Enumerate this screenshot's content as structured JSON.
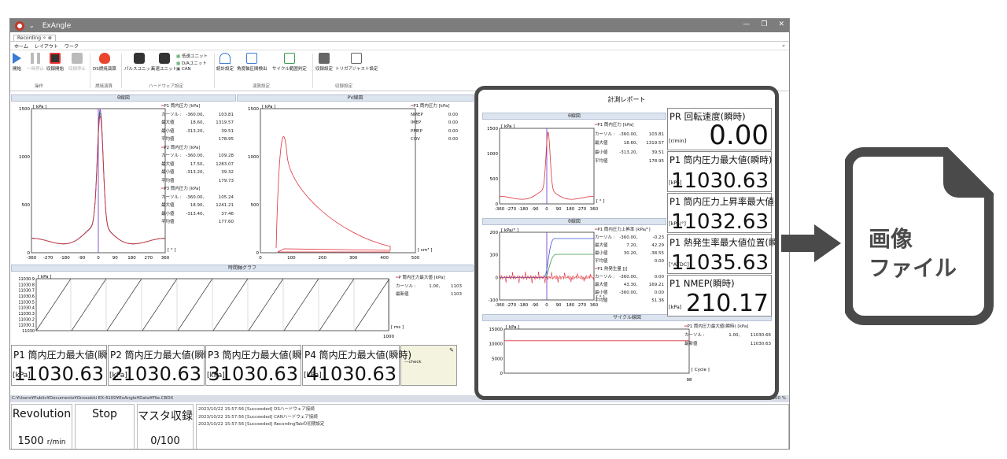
{
  "app": {
    "title": "ExAngle",
    "window_controls": [
      "—",
      "❐",
      "✕"
    ]
  },
  "tabs": [
    {
      "label": "Recording ✧ ⊗"
    }
  ],
  "menu": [
    "ホーム",
    "レイアウト",
    "ワーク"
  ],
  "ribbon": {
    "buttons": [
      {
        "label": "開始"
      },
      {
        "label": "一時停止"
      },
      {
        "label": "収録開始"
      },
      {
        "label": "収録停止"
      },
      {
        "label": "DS燃焼演算"
      },
      {
        "label": "パルスユニット"
      },
      {
        "label": "高速ユニット"
      },
      {
        "label": "低速ユニット"
      },
      {
        "label": "D/Aユニット"
      },
      {
        "label": "CAN"
      },
      {
        "label": "統計設定"
      },
      {
        "label": "角度軸区間検出"
      },
      {
        "label": "サイクル範囲判定"
      },
      {
        "label": "収録設定"
      },
      {
        "label": "トリガアジャスト設定"
      }
    ],
    "groups": [
      "操作",
      "燃焼演算",
      "ハードウェア設定",
      "演算設定",
      "収録設定"
    ]
  },
  "theta_panel": {
    "title": "θ線図",
    "y_unit": "[ kPa ]",
    "x_unit": "[ ° ]",
    "y_ticks": [
      "1500",
      "1000",
      "500",
      "0"
    ],
    "x_ticks": [
      "-360",
      "-270",
      "-180",
      "-90",
      "0",
      "90",
      "180",
      "270",
      "360"
    ],
    "legend": [
      {
        "name": "P1 筒内圧力 [kPa]",
        "rows": [
          [
            "カーソル :",
            "-360.00、",
            "103.81"
          ],
          [
            "最大値",
            "18.60、",
            "1319.57"
          ],
          [
            "最小値",
            "-313.20、",
            "39.51"
          ],
          [
            "平均値",
            "",
            "178.95"
          ]
        ]
      },
      {
        "name": "P2 筒内圧力 [kPa]",
        "rows": [
          [
            "カーソル :",
            "-360.00、",
            "109.28"
          ],
          [
            "最大値",
            "17.50、",
            "1283.07"
          ],
          [
            "最小値",
            "-313.20、",
            "39.32"
          ],
          [
            "平均値",
            "",
            "179.73"
          ]
        ]
      },
      {
        "name": "P3 筒内圧力 [kPa]",
        "rows": [
          [
            "カーソル :",
            "-360.00、",
            "105.24"
          ],
          [
            "最大値",
            "18.90、",
            "1241.21"
          ],
          [
            "最小値",
            "-313.40、",
            "37.46"
          ],
          [
            "平均値",
            "",
            "177.60"
          ]
        ]
      }
    ]
  },
  "pv_panel": {
    "title": "PV線図",
    "y_unit": "[ kPa ]",
    "x_unit": "[ cm³ ]",
    "y_ticks": [
      "1500",
      "1000",
      "500",
      "0"
    ],
    "x_ticks": [
      "0",
      "100",
      "200",
      "300",
      "400",
      "500"
    ],
    "legend": {
      "name": "P1 筒内圧力 [kPa]",
      "rows": [
        [
          "NMEP",
          "0.00"
        ],
        [
          "IMEP",
          "0.00"
        ],
        [
          "PMEP",
          "0.00"
        ],
        [
          "COV",
          "0.00"
        ]
      ]
    }
  },
  "time_panel": {
    "title": "時間軸グラフ",
    "y_unit": "[ kPa ]",
    "x_unit": "[ ms ]",
    "x_end": "1000",
    "y_ticks": [
      "11030.9",
      "11030.8",
      "11030.7",
      "11030.6",
      "11030.5",
      "11030.4",
      "11030.3",
      "11030.2",
      "11030.1",
      "11030"
    ],
    "legend": {
      "name": "P 筒内圧力最大値 [kPa]",
      "rows": [
        [
          "カーソル :",
          "1.00、",
          "1103"
        ],
        [
          "最新値",
          "",
          "1103"
        ]
      ]
    }
  },
  "big_values": [
    {
      "title": "P1 筒内圧力最大値(瞬時)",
      "unit": "[kPa]",
      "value": "11030.63"
    },
    {
      "title": "P2 筒内圧力最大値(瞬時)",
      "unit": "[kPa]",
      "value": "21030.63"
    },
    {
      "title": "P3 筒内圧力最大値(瞬時)",
      "unit": "[kPa]",
      "value": "31030.63"
    },
    {
      "title": "P4 筒内圧力最大値(瞬時)",
      "unit": "[kPa]",
      "value": "41030.63"
    }
  ],
  "check_label": "—check",
  "status_path": "C:¥Users¥Public¥Documents¥Onosokki EX-4100¥ExAngle¥Data¥File.CBDX",
  "zoom": "100 %",
  "status_boxes": [
    {
      "title": "Revolution",
      "value": "1500",
      "unit": "r/min"
    },
    {
      "title": "Stop",
      "value": ""
    },
    {
      "title": "マスタ収録",
      "value": "0/100"
    }
  ],
  "log": [
    "2023/10/22 15:57:56   [Succeeded] DSハードウェア接続",
    "2023/10/22 15:57:56   [Succeeded] CANハードウェア接続",
    "2023/10/22 15:57:56   [Succeeded] RecordingTabの初期設定"
  ],
  "report": {
    "title": "計測レポート",
    "theta": {
      "title": "θ線図",
      "y_unit": "[ kPa ]",
      "x_unit": "[ ° ]",
      "y_ticks": [
        "1500",
        "1000",
        "500",
        "0"
      ],
      "x_ticks": [
        "-360",
        "-270",
        "-180",
        "-90",
        "0",
        "90",
        "180",
        "270",
        "360"
      ],
      "legend": {
        "name": "P1 筒内圧力 [kPa]",
        "rows": [
          [
            "カーソル :",
            "-360.00、",
            "103.81"
          ],
          [
            "最大値",
            "18.60、",
            "1319.57"
          ],
          [
            "最小値",
            "-313.20、",
            "39.51"
          ],
          [
            "平均値",
            "",
            "178.95"
          ]
        ]
      }
    },
    "theta2": {
      "title": "θ線図",
      "y_unit": "[ kPa/° ]",
      "x_unit": "[ ° ]",
      "y_ticks": [
        "200",
        "100",
        "0",
        "-100"
      ],
      "x_ticks": [
        "-360",
        "-270",
        "-180",
        "-90",
        "0",
        "90",
        "180",
        "270",
        "360"
      ],
      "legend1": {
        "name": "P1 筒内圧力上昇率 [kPa/°]",
        "rows": [
          [
            "カーソル :",
            "-360.00、",
            "-0.23"
          ],
          [
            "最大値",
            "7.20、",
            "42.29"
          ],
          [
            "最小値",
            "30.20、",
            "-38.55"
          ],
          [
            "平均値",
            "",
            "0.00"
          ]
        ]
      },
      "legend2": {
        "name": "P1 熱発生量 [J]",
        "rows": [
          [
            "カーソル :",
            "-360.00、",
            "0.00"
          ],
          [
            "最大値",
            "43.30、",
            "169.21"
          ],
          [
            "最小値",
            "-360.00、",
            "0.00"
          ],
          [
            "平均値",
            "",
            "51.36"
          ]
        ]
      }
    },
    "cycle": {
      "title": "サイクル線図",
      "y_unit": "[ kPa ]",
      "x_unit": "[ Cycle ]",
      "x_end": "98",
      "y_ticks": [
        "15000",
        "10000",
        "5000",
        "0"
      ],
      "legend": {
        "name": "P1 筒内圧力最大値(瞬時) [kPa]",
        "rows": [
          [
            "カーソル :",
            "1.00、",
            "11030.66"
          ],
          [
            "最新値",
            "",
            "11030.63"
          ]
        ]
      }
    },
    "values": [
      {
        "title": "PR 回転速度(瞬時)",
        "unit": "[r/min]",
        "value": "0.00"
      },
      {
        "title": "P1 筒内圧力最大値(瞬時)",
        "unit": "[kPa]",
        "value": "11030.63"
      },
      {
        "title": "P1 筒内圧力上昇率最大値(瞬時)",
        "unit": "[kPa/°]",
        "value": "11032.63"
      },
      {
        "title": "P1 熱発生率最大値位置(瞬時)",
        "unit": "[°ATDC]",
        "value": "11035.63"
      },
      {
        "title": "P1 NMEP(瞬時)",
        "unit": "[kPa]",
        "value": "210.17"
      }
    ]
  },
  "file_icon": {
    "line1": "画像",
    "line2": "ファイル"
  },
  "colors": {
    "accent_frame": "#4a4a4a",
    "p1": "#e0303c",
    "p2": "#2c7a4b",
    "p3": "#6a2cc9",
    "header_blue": "#dce4ef"
  }
}
